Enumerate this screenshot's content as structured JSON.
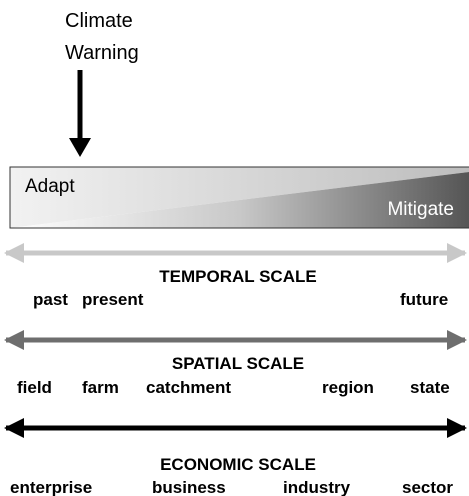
{
  "warning": {
    "lines": [
      "Climate",
      "Warning"
    ]
  },
  "gradient": {
    "left_label": "Adapt",
    "right_label": "Mitigate"
  },
  "scales": [
    {
      "title": "TEMPORAL SCALE",
      "labels": [
        "past",
        "present",
        "future"
      ]
    },
    {
      "title": "SPATIAL SCALE",
      "labels": [
        "field",
        "farm",
        "catchment",
        "region",
        "state"
      ]
    },
    {
      "title": "ECONOMIC SCALE",
      "labels": [
        "enterprise",
        "business",
        "industry",
        "sector"
      ]
    }
  ]
}
